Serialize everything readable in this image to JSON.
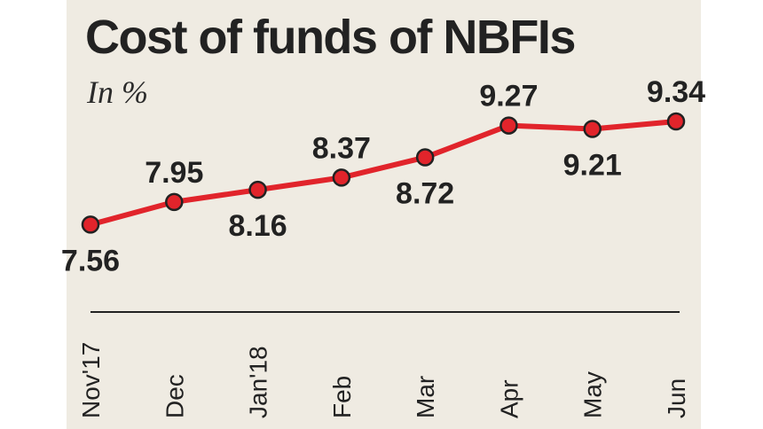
{
  "title": "Cost of funds of NBFIs",
  "unit_label": "In %",
  "colors": {
    "background": "#efebe2",
    "line": "#e1242b",
    "marker_outline": "#222222",
    "text": "#222222"
  },
  "chart_data": {
    "type": "line",
    "title": "Cost of funds of NBFIs",
    "ylabel": "In %",
    "xlabel": "",
    "categories": [
      "Nov'17",
      "Dec",
      "Jan'18",
      "Feb",
      "Mar",
      "Apr",
      "May",
      "Jun"
    ],
    "values": [
      7.56,
      7.95,
      8.16,
      8.37,
      8.72,
      9.27,
      9.21,
      9.34
    ],
    "label_positions": [
      "below",
      "above",
      "below",
      "above",
      "below",
      "above",
      "below",
      "above"
    ],
    "ylim": [
      7.0,
      9.6
    ],
    "grid": false,
    "legend": "none"
  }
}
